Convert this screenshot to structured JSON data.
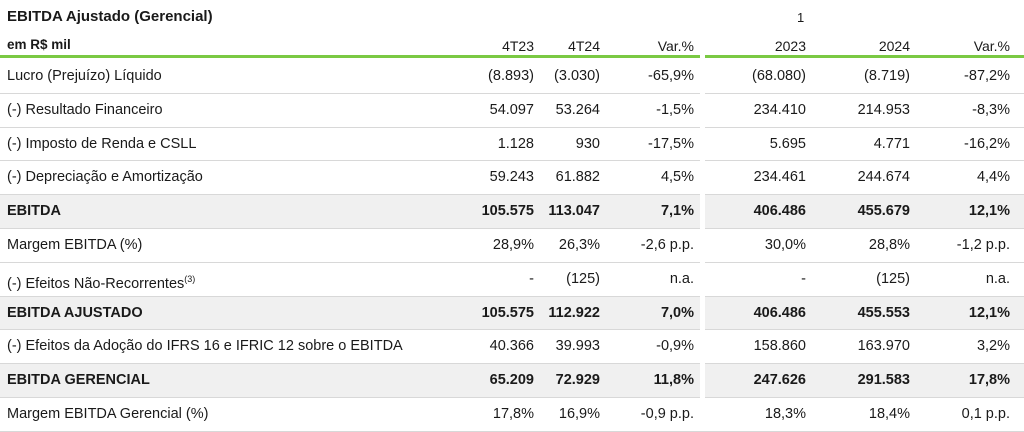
{
  "header": {
    "title": "EBITDA Ajustado (Gerencial)",
    "note": "1",
    "unit": "em R$ mil",
    "columns": [
      "4T23",
      "4T24",
      "Var.%",
      "2023",
      "2024",
      "Var.%"
    ]
  },
  "rows": [
    {
      "label": "Lucro (Prejuízo) Líquido",
      "sup": "",
      "values": [
        "(8.893)",
        "(3.030)",
        "-65,9%",
        "(68.080)",
        "(8.719)",
        "-87,2%"
      ],
      "bold": false
    },
    {
      "label": "(-) Resultado Financeiro",
      "sup": "",
      "values": [
        "54.097",
        "53.264",
        "-1,5%",
        "234.410",
        "214.953",
        "-8,3%"
      ],
      "bold": false
    },
    {
      "label": "(-) Imposto de Renda e CSLL",
      "sup": "",
      "values": [
        "1.128",
        "930",
        "-17,5%",
        "5.695",
        "4.771",
        "-16,2%"
      ],
      "bold": false
    },
    {
      "label": "(-) Depreciação e Amortização",
      "sup": "",
      "values": [
        "59.243",
        "61.882",
        "4,5%",
        "234.461",
        "244.674",
        "4,4%"
      ],
      "bold": false
    },
    {
      "label": "EBITDA",
      "sup": "",
      "values": [
        "105.575",
        "113.047",
        "7,1%",
        "406.486",
        "455.679",
        "12,1%"
      ],
      "bold": true
    },
    {
      "label": "Margem EBITDA (%)",
      "sup": "",
      "values": [
        "28,9%",
        "26,3%",
        "-2,6 p.p.",
        "30,0%",
        "28,8%",
        "-1,2 p.p."
      ],
      "bold": false
    },
    {
      "label": "(-) Efeitos Não-Recorrentes",
      "sup": "(3)",
      "values": [
        "-",
        "(125)",
        "n.a.",
        "-",
        "(125)",
        "n.a."
      ],
      "bold": false
    },
    {
      "label": "EBITDA AJUSTADO",
      "sup": "",
      "values": [
        "105.575",
        "112.922",
        "7,0%",
        "406.486",
        "455.553",
        "12,1%"
      ],
      "bold": true
    },
    {
      "label": "(-) Efeitos da Adoção do IFRS 16 e IFRIC 12 sobre o EBITDA",
      "sup": "",
      "values": [
        "40.366",
        "39.993",
        "-0,9%",
        "158.860",
        "163.970",
        "3,2%"
      ],
      "bold": false
    },
    {
      "label": "EBITDA GERENCIAL",
      "sup": "",
      "values": [
        "65.209",
        "72.929",
        "11,8%",
        "247.626",
        "291.583",
        "17,8%"
      ],
      "bold": true
    },
    {
      "label": "Margem EBITDA Gerencial (%)",
      "sup": "",
      "values": [
        "17,8%",
        "16,9%",
        "-0,9 p.p.",
        "18,3%",
        "18,4%",
        "0,1 p.p."
      ],
      "bold": false
    }
  ],
  "colors": {
    "accent": "#7ac943",
    "shade": "#f0f0f0",
    "rule": "#d8d8d8"
  }
}
